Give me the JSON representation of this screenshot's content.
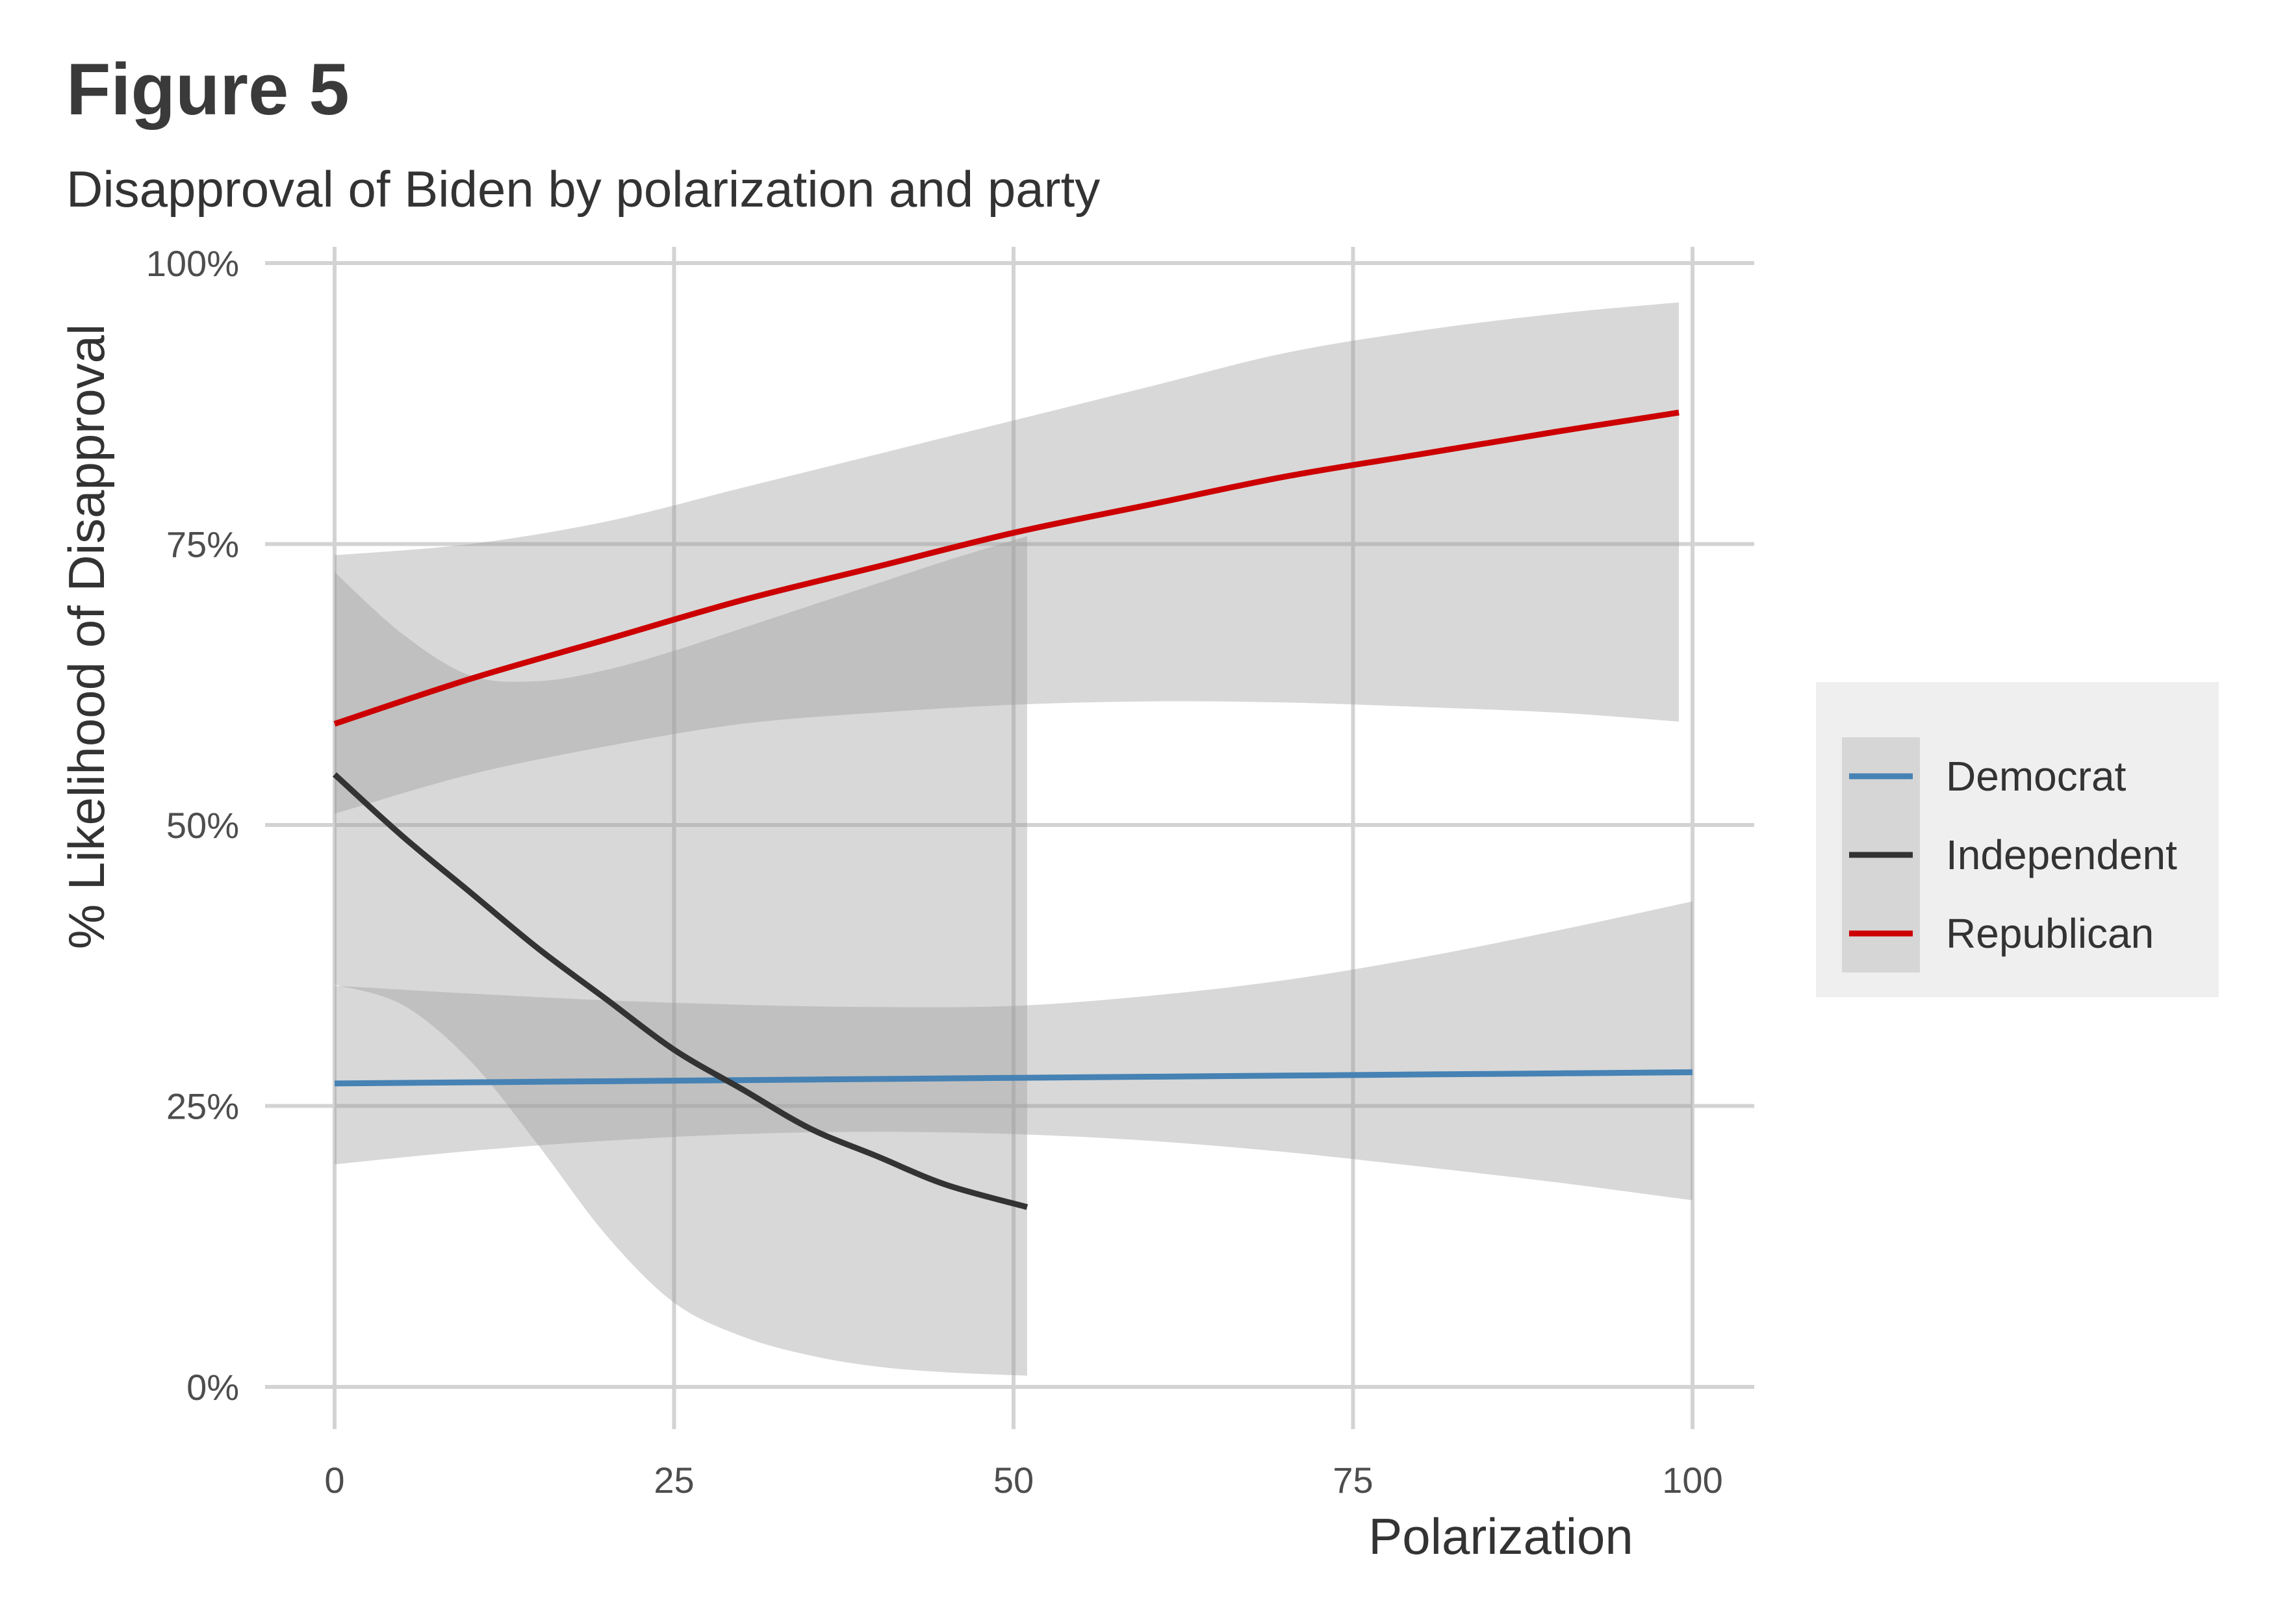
{
  "figure": {
    "title": "Figure 5",
    "subtitle": "Disapproval of Biden by polarization and party"
  },
  "chart_data": {
    "type": "line",
    "title": "Figure 5",
    "subtitle": "Disapproval of Biden by polarization and party",
    "xlabel": "Polarization",
    "ylabel": "% Likelihood of Disapproval",
    "xlim": [
      -5,
      105
    ],
    "ylim": [
      -7,
      105
    ],
    "x_ticks": [
      0,
      25,
      50,
      75,
      100
    ],
    "x_tick_labels": [
      "0",
      "25",
      "50",
      "75",
      "100"
    ],
    "y_ticks": [
      0,
      25,
      50,
      75,
      100
    ],
    "y_tick_labels": [
      "0%",
      "25%",
      "50%",
      "75%",
      "100%"
    ],
    "grid": true,
    "legend_position": "right",
    "series": [
      {
        "name": "Democrat",
        "color": "#4682b4",
        "x": [
          0,
          10,
          20,
          30,
          40,
          50,
          60,
          70,
          80,
          90,
          100
        ],
        "y": [
          27.0,
          27.1,
          27.2,
          27.3,
          27.4,
          27.5,
          27.6,
          27.7,
          27.8,
          27.9,
          28.0
        ],
        "ci_lower": [
          19.8,
          21.0,
          21.9,
          22.5,
          22.7,
          22.5,
          21.9,
          20.9,
          19.6,
          18.2,
          16.6
        ],
        "ci_upper": [
          35.7,
          35.0,
          34.4,
          34.0,
          33.8,
          33.9,
          34.8,
          36.2,
          38.2,
          40.6,
          43.2
        ]
      },
      {
        "name": "Independent",
        "color": "#333333",
        "x": [
          0,
          5,
          10,
          15,
          20,
          25,
          30,
          35,
          40,
          45,
          51
        ],
        "y": [
          54.5,
          49.0,
          44.0,
          39.0,
          34.5,
          30.0,
          26.5,
          23.0,
          20.5,
          18.0,
          16.0
        ],
        "ci_lower": [
          42.5,
          47.0,
          51.0,
          54.0,
          56.0,
          57.5,
          58.8,
          59.7,
          60.3,
          60.5,
          60.6
        ],
        "ci_upper": [
          72.5,
          67.0,
          63.3,
          62.8,
          63.8,
          65.5,
          67.5,
          69.5,
          71.5,
          73.5,
          75.7
        ],
        "ci_lower_2": [
          35.8,
          34.0,
          29.0,
          21.5,
          13.5,
          7.5,
          4.5,
          2.8,
          1.8,
          1.3,
          1.0
        ]
      },
      {
        "name": "Republican",
        "color": "#cc0000",
        "x": [
          0,
          10,
          20,
          30,
          40,
          50,
          60,
          70,
          80,
          90,
          99
        ],
        "y": [
          59.0,
          63.0,
          66.5,
          70.0,
          73.0,
          76.0,
          78.5,
          81.0,
          83.0,
          85.0,
          86.7
        ],
        "ci_lower": [
          51.0,
          54.5,
          57.0,
          59.0,
          60.0,
          60.7,
          61.0,
          60.9,
          60.5,
          60.0,
          59.2
        ],
        "ci_upper": [
          74.0,
          75.0,
          77.0,
          80.0,
          83.0,
          86.0,
          89.0,
          92.0,
          94.0,
          95.5,
          96.5
        ]
      }
    ]
  }
}
